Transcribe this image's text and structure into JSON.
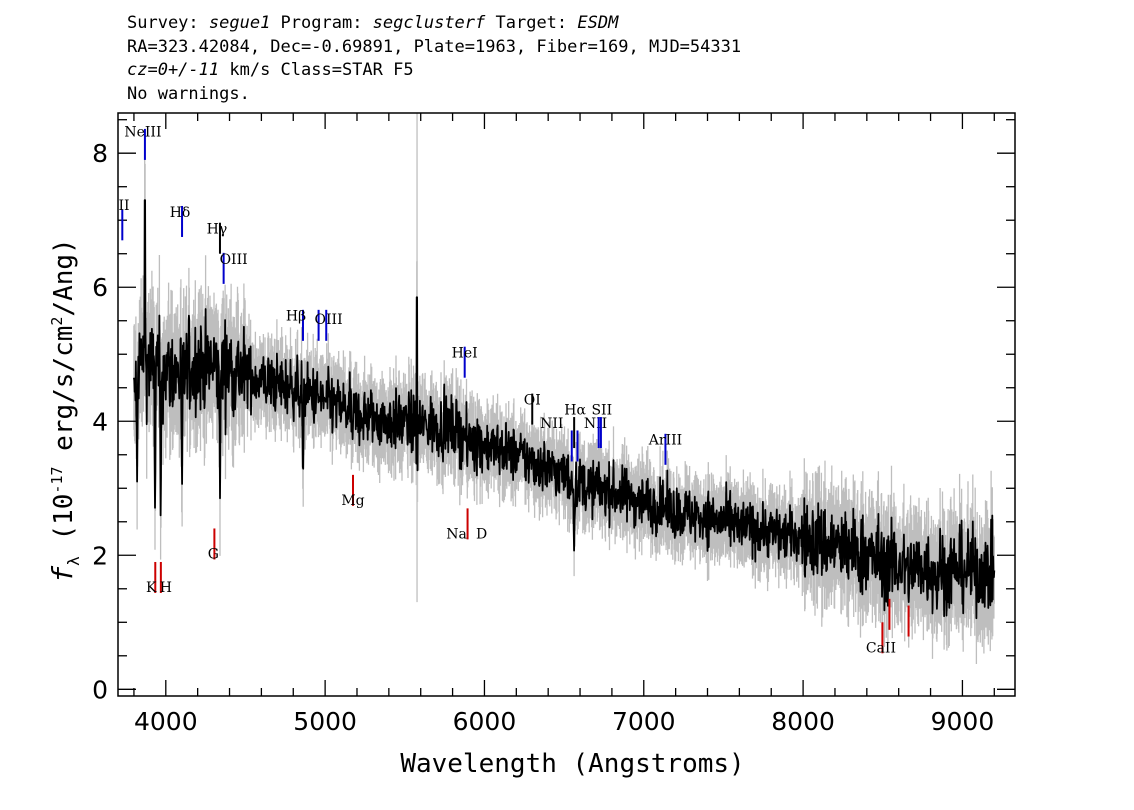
{
  "header": {
    "line1": [
      {
        "t": "Survey: ",
        "i": false
      },
      {
        "t": "segue1",
        "i": true
      },
      {
        "t": " Program: ",
        "i": false
      },
      {
        "t": "segclusterf",
        "i": true
      },
      {
        "t": " Target: ",
        "i": false
      },
      {
        "t": "ESDM",
        "i": true
      }
    ],
    "line2": "RA=323.42084, Dec=-0.69891, Plate=1963, Fiber=169, MJD=54331",
    "line3": [
      {
        "t": "cz=0+/-11",
        "i": true
      },
      {
        "t": " km/s Class=STAR F5",
        "i": false
      }
    ],
    "line4": "No warnings."
  },
  "chart_data": {
    "type": "line",
    "xlabel": "Wavelength (Angstroms)",
    "ylabel_parts": [
      "f",
      "λ",
      " (10",
      "-17",
      " erg/s/cm",
      "2",
      "/Ang)"
    ],
    "xlim": [
      3700,
      9330
    ],
    "ylim": [
      -0.1,
      8.6
    ],
    "x_ticks": [
      4000,
      5000,
      6000,
      7000,
      8000,
      9000
    ],
    "y_ticks": [
      0,
      2,
      4,
      6,
      8
    ],
    "x_range": [
      3800,
      9200
    ],
    "series": [
      {
        "role": "flux",
        "color": "#000000",
        "anchors": [
          [
            3800,
            4.3
          ],
          [
            3830,
            4.9
          ],
          [
            3900,
            4.85
          ],
          [
            4000,
            4.75
          ],
          [
            4100,
            4.7
          ],
          [
            4200,
            4.85
          ],
          [
            4300,
            4.8
          ],
          [
            4400,
            4.8
          ],
          [
            4500,
            4.7
          ],
          [
            4600,
            4.6
          ],
          [
            4700,
            4.55
          ],
          [
            4800,
            4.5
          ],
          [
            4900,
            4.4
          ],
          [
            5000,
            4.3
          ],
          [
            5200,
            4.1
          ],
          [
            5400,
            4.0
          ],
          [
            5600,
            3.95
          ],
          [
            5800,
            3.9
          ],
          [
            5900,
            3.75
          ],
          [
            6000,
            3.65
          ],
          [
            6200,
            3.5
          ],
          [
            6400,
            3.3
          ],
          [
            6500,
            3.2
          ],
          [
            6600,
            3.05
          ],
          [
            6700,
            3.0
          ],
          [
            6800,
            2.95
          ],
          [
            7000,
            2.8
          ],
          [
            7200,
            2.65
          ],
          [
            7400,
            2.55
          ],
          [
            7600,
            2.45
          ],
          [
            7800,
            2.35
          ],
          [
            8000,
            2.25
          ],
          [
            8200,
            2.15
          ],
          [
            8400,
            2.0
          ],
          [
            8600,
            1.85
          ],
          [
            8800,
            1.8
          ],
          [
            9000,
            1.8
          ],
          [
            9200,
            1.75
          ]
        ]
      },
      {
        "role": "error",
        "color": "#bebebe"
      }
    ],
    "absorption_dips": [
      [
        3820,
        3.1
      ],
      [
        3933,
        2.55
      ],
      [
        3968,
        2.4
      ],
      [
        4102,
        2.9
      ],
      [
        4340,
        2.85
      ],
      [
        4861,
        3.0
      ],
      [
        5173,
        3.7
      ],
      [
        5577,
        2.6
      ],
      [
        5893,
        3.3
      ],
      [
        6300,
        2.75
      ],
      [
        6563,
        2.0
      ],
      [
        7600,
        2.2
      ],
      [
        8498,
        1.5
      ],
      [
        8542,
        1.4
      ],
      [
        8662,
        1.3
      ],
      [
        8840,
        1.2
      ],
      [
        8900,
        1.1
      ],
      [
        9100,
        1.3
      ]
    ],
    "spikes": [
      [
        3869,
        7.3
      ],
      [
        5577,
        5.85
      ],
      [
        6300,
        3.6
      ]
    ],
    "emission_lines": [
      {
        "label": "OII",
        "x": 3727,
        "y": 6.7,
        "color": "#0000cc"
      },
      {
        "label": "NeIII",
        "x": 3869,
        "y": 7.9,
        "color": "#0000cc"
      },
      {
        "label": "Hδ",
        "x": 4102,
        "y": 6.75,
        "color": "#0000cc"
      },
      {
        "label": "Hγ",
        "x": 4340,
        "y": 6.5,
        "color": "#000000"
      },
      {
        "label": "OIII",
        "x": 4363,
        "y": 6.05,
        "color": "#0000cc"
      },
      {
        "label": "Hβ",
        "x": 4861,
        "y": 5.2,
        "color": "#0000cc"
      },
      {
        "label": "OIII",
        "x": 4959,
        "y": 5.2,
        "color": "#0000cc"
      },
      {
        "label": "OIII",
        "x": 5007,
        "y": 5.2,
        "color": "#0000cc"
      },
      {
        "label": "HeI",
        "x": 5876,
        "y": 4.65,
        "color": "#0000cc"
      },
      {
        "label": "OI",
        "x": 6300,
        "y": 3.95,
        "color": "#000000"
      },
      {
        "label": "NII",
        "x": 6548,
        "y": 3.4,
        "color": "#0000cc"
      },
      {
        "label": "Hα",
        "x": 6563,
        "y": 3.6,
        "color": "#000000"
      },
      {
        "label": "NII",
        "x": 6584,
        "y": 3.4,
        "color": "#0000cc"
      },
      {
        "label": "SII",
        "x": 6717,
        "y": 3.6,
        "color": "#0000cc"
      },
      {
        "label": "SII",
        "x": 6731,
        "y": 3.6,
        "color": "#0000cc"
      },
      {
        "label": "ArIII",
        "x": 7136,
        "y": 3.35,
        "color": "#0000cc"
      }
    ],
    "absorption_lines": [
      {
        "label": "K",
        "x": 3934,
        "y": 1.9,
        "color": "#cc0000"
      },
      {
        "label": "H",
        "x": 3969,
        "y": 1.9,
        "color": "#cc0000"
      },
      {
        "label": "G",
        "x": 4305,
        "y": 2.4,
        "color": "#cc0000"
      },
      {
        "label": "Mg",
        "x": 5175,
        "y": 3.2,
        "color": "#cc0000"
      },
      {
        "label": "Na",
        "x": 5894,
        "y": 2.7,
        "color": "#cc0000"
      },
      {
        "label": "D",
        "x": 5894,
        "y": 2.7,
        "color": "#cc0000"
      },
      {
        "label": "CaII",
        "x": 8498,
        "y": 1.0,
        "color": "#cc0000"
      },
      {
        "label": "CaII",
        "x": 8542,
        "y": 1.35,
        "color": "#cc0000"
      },
      {
        "label": "CaII",
        "x": 8662,
        "y": 1.25,
        "color": "#cc0000"
      }
    ]
  }
}
